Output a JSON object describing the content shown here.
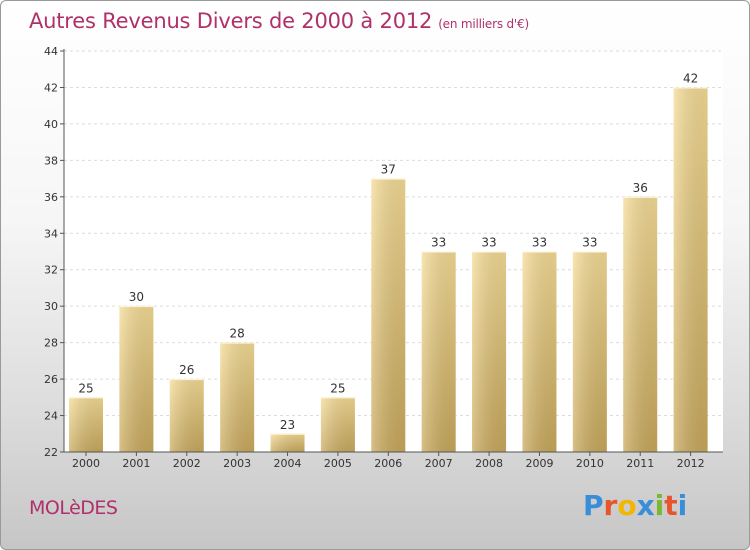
{
  "chart_data": {
    "type": "bar",
    "title": "Autres Revenus Divers de 2000 à 2012",
    "unit_note": "(en milliers d'€)",
    "categories": [
      "2000",
      "2001",
      "2002",
      "2003",
      "2004",
      "2005",
      "2006",
      "2007",
      "2008",
      "2009",
      "2010",
      "2011",
      "2012"
    ],
    "values": [
      25,
      30,
      26,
      28,
      23,
      25,
      37,
      33,
      33,
      33,
      33,
      36,
      42
    ],
    "ylim": [
      22,
      44
    ],
    "yticks": [
      22,
      24,
      26,
      28,
      30,
      32,
      34,
      36,
      38,
      40,
      42,
      44
    ],
    "grid": true,
    "bar_color_light": "#f5dc96",
    "bar_color_dark": "#c9a95c"
  },
  "footer": {
    "commune": "MOLèDES",
    "logo_letters": [
      "P",
      "r",
      "o",
      "x",
      "i",
      "t",
      "i"
    ],
    "logo_colors": [
      "#3a8ed8",
      "#e8542c",
      "#f2b705",
      "#3a8ed8",
      "#7ab833",
      "#e8542c",
      "#3a8ed8"
    ]
  }
}
